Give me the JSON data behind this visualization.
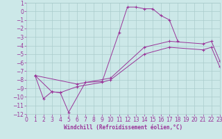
{
  "xlabel": "Windchill (Refroidissement éolien,°C)",
  "bg_color": "#cce8e8",
  "grid_color": "#aacccc",
  "line_color": "#993399",
  "xlim": [
    0,
    23
  ],
  "ylim": [
    -12,
    1
  ],
  "xticks": [
    0,
    1,
    2,
    3,
    4,
    5,
    6,
    7,
    8,
    9,
    10,
    11,
    12,
    13,
    14,
    15,
    16,
    17,
    18,
    19,
    20,
    21,
    22,
    23
  ],
  "yticks": [
    1,
    0,
    -1,
    -2,
    -3,
    -4,
    -5,
    -6,
    -7,
    -8,
    -9,
    -10,
    -11,
    -12
  ],
  "series": [
    {
      "x": [
        1,
        2,
        3,
        4,
        5,
        7,
        9,
        11,
        12,
        13,
        14,
        15,
        16,
        17,
        18
      ],
      "y": [
        -7.5,
        -10.2,
        -9.4,
        -9.5,
        -11.8,
        -8.3,
        -8.2,
        -2.5,
        0.5,
        0.5,
        0.3,
        0.3,
        -0.5,
        -1.0,
        -3.5
      ]
    },
    {
      "x": [
        1,
        3,
        4,
        6,
        9,
        10,
        14,
        17,
        21,
        22,
        23
      ],
      "y": [
        -7.5,
        -9.4,
        -9.5,
        -8.8,
        -8.3,
        -8.0,
        -5.0,
        -4.2,
        -4.5,
        -4.2,
        -6.5
      ]
    },
    {
      "x": [
        1,
        6,
        10,
        14,
        17,
        21,
        22,
        23
      ],
      "y": [
        -7.5,
        -8.5,
        -7.8,
        -4.2,
        -3.5,
        -3.8,
        -3.5,
        -5.8
      ]
    }
  ],
  "tick_fontsize": 5.5,
  "xlabel_fontsize": 5.5
}
